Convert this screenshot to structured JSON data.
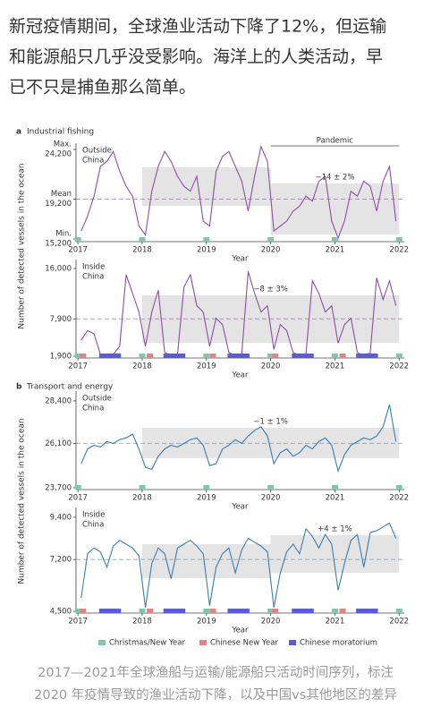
{
  "post": {
    "lines": [
      "新冠疫情期间，全球渔业活动下降了12%，但运输",
      "和能源船只几乎没受影响。海洋上的人类活动，早",
      "已不只是捕鱼那么简单。"
    ],
    "caption": [
      "2017—2021年全球渔船与运输/能源船只活动时间序列，标注",
      "2020 年疫情导致的渔业活动下降，以及中国vs其他地区的差异"
    ]
  },
  "panels": [
    {
      "label": "a",
      "title": "Industrial fishing",
      "ylabel": "Number of detected vessels in the ocean"
    },
    {
      "label": "b",
      "title": "Transport and energy",
      "ylabel": "Number of detected vessels in the ocean"
    }
  ],
  "legend": [
    {
      "name": "Christmas/New Year",
      "color": "#7ec8a9"
    },
    {
      "name": "Chinese New Year",
      "color": "#e08585"
    },
    {
      "name": "Chinese moratorium",
      "color": "#5b5bd6"
    }
  ],
  "chart_data": [
    {
      "type": "line",
      "region": [
        "Outside",
        "China"
      ],
      "color": "#8d4fa3",
      "xlabel": "Year",
      "xlim": [
        2016.97,
        2022.08
      ],
      "xticks": [
        2017,
        2018,
        2019,
        2020,
        2021,
        2022
      ],
      "ylim": [
        14930,
        24830
      ],
      "yticks": [
        {
          "value": 15200,
          "label": "15,200"
        },
        {
          "value": 19200,
          "label": "19,200"
        },
        {
          "value": 24200,
          "label": "24,200"
        }
      ],
      "ytick_names": [
        "Min.",
        "Mean",
        "Max."
      ],
      "mean": 19200,
      "pandemic": {
        "label": "Pandemic",
        "x": [
          2020,
          2022
        ]
      },
      "annotation": "−14 ± 2%",
      "bands": [
        {
          "x": [
            2018,
            2020
          ],
          "y": [
            18530,
            22400
          ]
        },
        {
          "x": [
            2020,
            2022
          ],
          "y": [
            15640,
            20780
          ]
        }
      ],
      "christmas": [
        2017,
        2018,
        2019,
        2020,
        2021,
        2022
      ],
      "cny": [],
      "moratorium": [],
      "x": [
        2017.05,
        2017.15,
        2017.25,
        2017.35,
        2017.45,
        2017.55,
        2017.65,
        2017.75,
        2017.85,
        2017.95,
        2018.05,
        2018.15,
        2018.25,
        2018.35,
        2018.45,
        2018.55,
        2018.65,
        2018.75,
        2018.85,
        2018.95,
        2019.05,
        2019.15,
        2019.25,
        2019.35,
        2019.45,
        2019.55,
        2019.65,
        2019.75,
        2019.85,
        2019.95,
        2020.05,
        2020.15,
        2020.25,
        2020.35,
        2020.45,
        2020.55,
        2020.65,
        2020.75,
        2020.85,
        2020.95,
        2021.05,
        2021.15,
        2021.25,
        2021.35,
        2021.45,
        2021.55,
        2021.65,
        2021.75,
        2021.85,
        2021.95
      ],
      "values": [
        16000,
        17500,
        19500,
        22500,
        23000,
        24000,
        22000,
        20500,
        19500,
        16500,
        15600,
        20000,
        22500,
        24000,
        23000,
        21500,
        20500,
        20000,
        21500,
        17000,
        16500,
        22000,
        23500,
        24000,
        22500,
        21000,
        18000,
        21500,
        24500,
        23000,
        16000,
        16500,
        17000,
        18000,
        18500,
        19500,
        19000,
        21000,
        21500,
        17000,
        15300,
        17000,
        20000,
        19500,
        21000,
        20500,
        18000,
        21000,
        22500,
        17000
      ]
    },
    {
      "type": "line",
      "region": [
        "Inside",
        "China"
      ],
      "color": "#8d4fa3",
      "xlabel": "Year",
      "xlim": [
        2016.97,
        2022.08
      ],
      "xticks": [
        2017,
        2018,
        2019,
        2020,
        2021,
        2022
      ],
      "ylim": [
        1610,
        17430
      ],
      "yticks": [
        {
          "value": 1900,
          "label": "1,900"
        },
        {
          "value": 7900,
          "label": "7,900"
        },
        {
          "value": 16000,
          "label": "16,000"
        }
      ],
      "mean": 7900,
      "annotation": "−8 ± 3%",
      "bands": [
        {
          "x": [
            2018,
            2022
          ],
          "y": [
            4060,
            11680
          ]
        }
      ],
      "christmas": [
        2017,
        2018,
        2019,
        2020,
        2021,
        2022
      ],
      "cny": [
        2017.08,
        2018.12,
        2019.1,
        2020.07,
        2021.12
      ],
      "moratorium": [
        [
          2017.33,
          2017.67
        ],
        [
          2018.33,
          2018.67
        ],
        [
          2019.33,
          2019.67
        ],
        [
          2020.33,
          2020.67
        ],
        [
          2021.33,
          2021.67
        ]
      ],
      "x": [
        2017.05,
        2017.15,
        2017.25,
        2017.35,
        2017.45,
        2017.55,
        2017.65,
        2017.75,
        2017.85,
        2017.95,
        2018.05,
        2018.15,
        2018.25,
        2018.35,
        2018.45,
        2018.55,
        2018.65,
        2018.75,
        2018.85,
        2018.95,
        2019.05,
        2019.15,
        2019.25,
        2019.35,
        2019.45,
        2019.55,
        2019.65,
        2019.75,
        2019.85,
        2019.95,
        2020.05,
        2020.15,
        2020.25,
        2020.35,
        2020.45,
        2020.55,
        2020.65,
        2020.75,
        2020.85,
        2020.95,
        2021.05,
        2021.15,
        2021.25,
        2021.35,
        2021.45,
        2021.55,
        2021.65,
        2021.75,
        2021.85,
        2021.95
      ],
      "values": [
        4500,
        6000,
        5500,
        2200,
        2000,
        2200,
        3500,
        15000,
        12000,
        9000,
        3500,
        9000,
        12500,
        2500,
        2000,
        2200,
        13000,
        15000,
        10000,
        9000,
        3500,
        8000,
        7000,
        2500,
        2000,
        2200,
        15500,
        12000,
        9000,
        10000,
        3000,
        7000,
        6000,
        2500,
        2000,
        2300,
        14000,
        12000,
        9000,
        10000,
        4000,
        7000,
        8000,
        2500,
        2000,
        2400,
        14500,
        11000,
        14000,
        10000
      ]
    },
    {
      "type": "line",
      "region": [
        "Outside",
        "China"
      ],
      "color": "#3b7db3",
      "xlabel": "Year",
      "xlim": [
        2016.97,
        2022.08
      ],
      "xticks": [
        2017,
        2018,
        2019,
        2020,
        2021,
        2022
      ],
      "ylim": [
        23600,
        28930
      ],
      "yticks": [
        {
          "value": 23700,
          "label": "23,700"
        },
        {
          "value": 26100,
          "label": "26,100"
        },
        {
          "value": 28400,
          "label": "28,400"
        }
      ],
      "mean": 26100,
      "annotation": "−1 ± 1%",
      "bands": [
        {
          "x": [
            2018,
            2022
          ],
          "y": [
            25300,
            26950
          ]
        }
      ],
      "christmas": [
        2017,
        2018,
        2019,
        2020,
        2021,
        2022
      ],
      "cny": [],
      "moratorium": [],
      "x": [
        2017.05,
        2017.15,
        2017.25,
        2017.35,
        2017.45,
        2017.55,
        2017.65,
        2017.75,
        2017.85,
        2017.95,
        2018.05,
        2018.15,
        2018.25,
        2018.35,
        2018.45,
        2018.55,
        2018.65,
        2018.75,
        2018.85,
        2018.95,
        2019.05,
        2019.15,
        2019.25,
        2019.35,
        2019.45,
        2019.55,
        2019.65,
        2019.75,
        2019.85,
        2019.95,
        2020.05,
        2020.15,
        2020.25,
        2020.35,
        2020.45,
        2020.55,
        2020.65,
        2020.75,
        2020.85,
        2020.95,
        2021.05,
        2021.15,
        2021.25,
        2021.35,
        2021.45,
        2021.55,
        2021.65,
        2021.75,
        2021.85,
        2021.95
      ],
      "values": [
        25000,
        25800,
        26000,
        25900,
        26200,
        26100,
        26300,
        26400,
        26600,
        25800,
        24800,
        24700,
        25400,
        25800,
        26000,
        25900,
        26100,
        26300,
        26400,
        26000,
        24900,
        25000,
        25800,
        26000,
        26300,
        26100,
        26500,
        26800,
        27000,
        26500,
        25000,
        25600,
        25800,
        25400,
        25600,
        26000,
        25800,
        26200,
        26400,
        26000,
        24600,
        25500,
        26000,
        26200,
        26400,
        26300,
        26500,
        27000,
        28200,
        26200
      ]
    },
    {
      "type": "line",
      "region": [
        "Inside",
        "China"
      ],
      "color": "#3b7db3",
      "xlabel": "Year",
      "xlim": [
        2016.97,
        2022.08
      ],
      "xticks": [
        2017,
        2018,
        2019,
        2020,
        2021,
        2022
      ],
      "ylim": [
        4410,
        9910
      ],
      "yticks": [
        {
          "value": 4500,
          "label": "4,500"
        },
        {
          "value": 7200,
          "label": "7,200"
        },
        {
          "value": 9400,
          "label": "9,400"
        }
      ],
      "mean": 7200,
      "annotation": "+4 ± 1%",
      "bands": [
        {
          "x": [
            2018,
            2020
          ],
          "y": [
            6230,
            8000
          ]
        },
        {
          "x": [
            2020,
            2022
          ],
          "y": [
            6510,
            8470
          ]
        }
      ],
      "christmas": [
        2017,
        2018,
        2019,
        2020,
        2021,
        2022
      ],
      "cny": [
        2017.08,
        2018.12,
        2019.1,
        2020.07,
        2021.12
      ],
      "moratorium": [
        [
          2017.33,
          2017.67
        ],
        [
          2018.33,
          2018.67
        ],
        [
          2019.33,
          2019.67
        ],
        [
          2020.33,
          2020.67
        ],
        [
          2021.33,
          2021.67
        ]
      ],
      "x": [
        2017.05,
        2017.15,
        2017.25,
        2017.35,
        2017.45,
        2017.55,
        2017.65,
        2017.75,
        2017.85,
        2017.95,
        2018.05,
        2018.15,
        2018.25,
        2018.35,
        2018.45,
        2018.55,
        2018.65,
        2018.75,
        2018.85,
        2018.95,
        2019.05,
        2019.15,
        2019.25,
        2019.35,
        2019.45,
        2019.55,
        2019.65,
        2019.75,
        2019.85,
        2019.95,
        2020.05,
        2020.15,
        2020.25,
        2020.35,
        2020.45,
        2020.55,
        2020.65,
        2020.75,
        2020.85,
        2020.95,
        2021.05,
        2021.15,
        2021.25,
        2021.35,
        2021.45,
        2021.55,
        2021.65,
        2021.75,
        2021.85,
        2021.95
      ],
      "values": [
        5200,
        7500,
        7800,
        7600,
        6800,
        7900,
        8200,
        8000,
        7800,
        7400,
        4700,
        7000,
        7800,
        7500,
        6200,
        7800,
        8000,
        8200,
        7900,
        7500,
        4800,
        6800,
        7500,
        7800,
        6500,
        7700,
        8300,
        8100,
        7900,
        7600,
        4700,
        6500,
        7600,
        8000,
        7500,
        8800,
        8400,
        7800,
        8500,
        8000,
        5600,
        7000,
        8200,
        8500,
        6800,
        8600,
        8700,
        8900,
        9100,
        8300
      ]
    }
  ]
}
